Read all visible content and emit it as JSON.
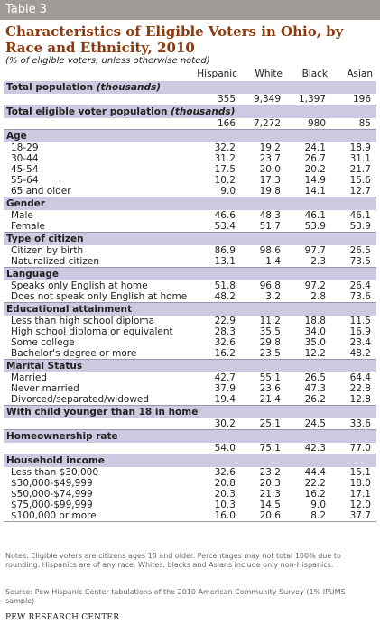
{
  "table_label": "Table 3",
  "title": "Characteristics of Eligible Voters in Ohio, by Race and Ethnicity, 2010",
  "subtitle": "(% of eligible voters, unless otherwise noted)",
  "columns": [
    "Hispanic",
    "White",
    "Black",
    "Asian"
  ],
  "total_population": {
    "label": "Total population",
    "label_italic": "(thousands)",
    "values": [
      "355",
      "9,349",
      "1,397",
      "196"
    ]
  },
  "total_eligible": {
    "label": "Total eligible voter population",
    "label_italic": "(thousands)",
    "values": [
      "166",
      "7,272",
      "980",
      "85"
    ]
  },
  "age": {
    "heading": "Age",
    "rows": [
      {
        "label": "18-29",
        "values": [
          "32.2",
          "19.2",
          "24.1",
          "18.9"
        ]
      },
      {
        "label": "30-44",
        "values": [
          "31.2",
          "23.7",
          "26.7",
          "31.1"
        ]
      },
      {
        "label": "45-54",
        "values": [
          "17.5",
          "20.0",
          "20.2",
          "21.7"
        ]
      },
      {
        "label": "55-64",
        "values": [
          "10.2",
          "17.3",
          "14.9",
          "15.6"
        ]
      },
      {
        "label": "65 and older",
        "values": [
          "9.0",
          "19.8",
          "14.1",
          "12.7"
        ]
      }
    ]
  },
  "gender": {
    "heading": "Gender",
    "rows": [
      {
        "label": "Male",
        "values": [
          "46.6",
          "48.3",
          "46.1",
          "46.1"
        ]
      },
      {
        "label": "Female",
        "values": [
          "53.4",
          "51.7",
          "53.9",
          "53.9"
        ]
      }
    ]
  },
  "citizen": {
    "heading": "Type of citizen",
    "rows": [
      {
        "label": "Citizen by birth",
        "values": [
          "86.9",
          "98.6",
          "97.7",
          "26.5"
        ]
      },
      {
        "label": "Naturalized citizen",
        "values": [
          "13.1",
          "1.4",
          "2.3",
          "73.5"
        ]
      }
    ]
  },
  "language": {
    "heading": "Language",
    "rows": [
      {
        "label": "Speaks only English at home",
        "values": [
          "51.8",
          "96.8",
          "97.2",
          "26.4"
        ]
      },
      {
        "label": "Does not speak only English at home",
        "values": [
          "48.2",
          "3.2",
          "2.8",
          "73.6"
        ]
      }
    ]
  },
  "education": {
    "heading": "Educational attainment",
    "rows": [
      {
        "label": "Less than high school diploma",
        "values": [
          "22.9",
          "11.2",
          "18.8",
          "11.5"
        ]
      },
      {
        "label": "High school diploma or equivalent",
        "values": [
          "28.3",
          "35.5",
          "34.0",
          "16.9"
        ]
      },
      {
        "label": "Some college",
        "values": [
          "32.6",
          "29.8",
          "35.0",
          "23.4"
        ]
      },
      {
        "label": "Bachelor's degree or more",
        "values": [
          "16.2",
          "23.5",
          "12.2",
          "48.2"
        ]
      }
    ]
  },
  "marital": {
    "heading": "Marital Status",
    "rows": [
      {
        "label": "Married",
        "values": [
          "42.7",
          "55.1",
          "26.5",
          "64.4"
        ]
      },
      {
        "label": "Never married",
        "values": [
          "37.9",
          "23.6",
          "47.3",
          "22.8"
        ]
      },
      {
        "label": "Divorced/separated/widowed",
        "values": [
          "19.4",
          "21.4",
          "26.2",
          "12.8"
        ]
      }
    ]
  },
  "child": {
    "heading": "With child younger than 18 in home",
    "values": [
      "30.2",
      "25.1",
      "24.5",
      "33.6"
    ]
  },
  "homeownership": {
    "heading": "Homeownership rate",
    "values": [
      "54.0",
      "75.1",
      "42.3",
      "77.0"
    ]
  },
  "income": {
    "heading": "Household income",
    "rows": [
      {
        "label": "Less than $30,000",
        "values": [
          "32.6",
          "23.2",
          "44.4",
          "15.1"
        ]
      },
      {
        "label": "$30,000-$49,999",
        "values": [
          "20.8",
          "20.3",
          "22.2",
          "18.0"
        ]
      },
      {
        "label": "$50,000-$74,999",
        "values": [
          "20.3",
          "21.3",
          "16.2",
          "17.1"
        ]
      },
      {
        "label": "$75,000-$99,999",
        "values": [
          "10.3",
          "14.5",
          "9.0",
          "12.0"
        ]
      },
      {
        "label": "$100,000 or more",
        "values": [
          "16.0",
          "20.6",
          "8.2",
          "37.7"
        ]
      }
    ]
  },
  "notes": "Notes: Eligible voters are citizens ages 18 and older. Percentages may not total 100% due to rounding. Hispanics are of any race. Whites, blacks and Asians include only non-Hispanics.",
  "source": "Source: Pew Hispanic Center tabulations of the 2010 American Community Survey (1% IPUMS sample)",
  "brand": "PEW RESEARCH CENTER",
  "colors": {
    "banner": "#a09b96",
    "title": "#8b3a0e",
    "section_band": "#cdc9e0"
  }
}
